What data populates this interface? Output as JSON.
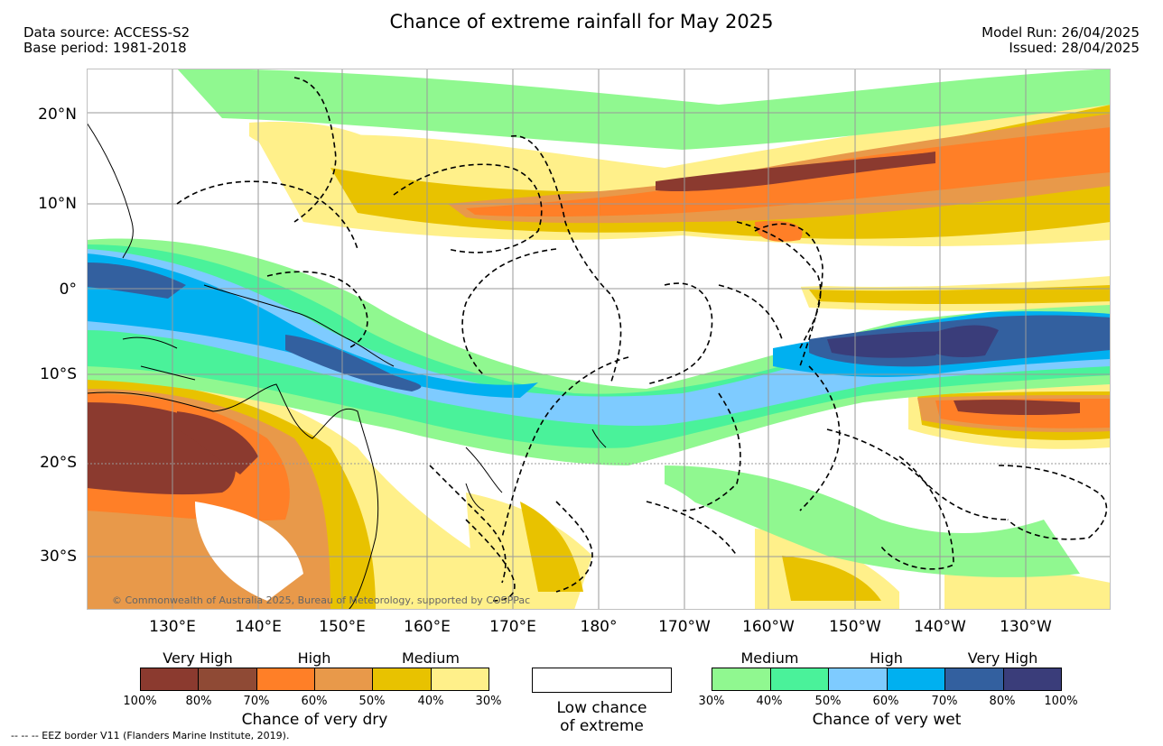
{
  "title": "Chance of extreme rainfall for May 2025",
  "data_source": "Data source: ACCESS-S2",
  "base_period": "Base period: 1981-2018",
  "model_run": "Model Run: 26/04/2025",
  "issued": "Issued: 28/04/2025",
  "lat_labels": [
    "20°N",
    "10°N",
    "0°",
    "10°S",
    "20°S",
    "30°S"
  ],
  "lon_labels": [
    "130°E",
    "140°E",
    "150°E",
    "160°E",
    "170°E",
    "180°",
    "170°W",
    "160°W",
    "150°W",
    "140°W",
    "130°W"
  ],
  "copyright": "© Commonwealth of Australia 2025, Bureau of Meteorology, supported by COSPPac",
  "eez_note": "--  --  -- EEZ border V11 (Flanders Marine Institute, 2019).",
  "dry_legend": {
    "title": "Chance of very dry",
    "categories": [
      "Very High",
      "High",
      "Medium"
    ],
    "ticks": [
      "100%",
      "80%",
      "70%",
      "60%",
      "50%",
      "40%",
      "30%"
    ],
    "colors": [
      "#8b3a2f",
      "#8f4a35",
      "#ff7f27",
      "#e8994a",
      "#e8c200",
      "#fff08a"
    ]
  },
  "neutral_legend": {
    "line1": "Low chance",
    "line2": "of extreme"
  },
  "wet_legend": {
    "title": "Chance of very wet",
    "categories": [
      "Medium",
      "High",
      "Very High"
    ],
    "ticks": [
      "30%",
      "40%",
      "50%",
      "60%",
      "70%",
      "80%",
      "100%"
    ],
    "colors": [
      "#90f890",
      "#4af29a",
      "#7ecbff",
      "#00b0f0",
      "#33609f",
      "#3a3d7a"
    ]
  }
}
